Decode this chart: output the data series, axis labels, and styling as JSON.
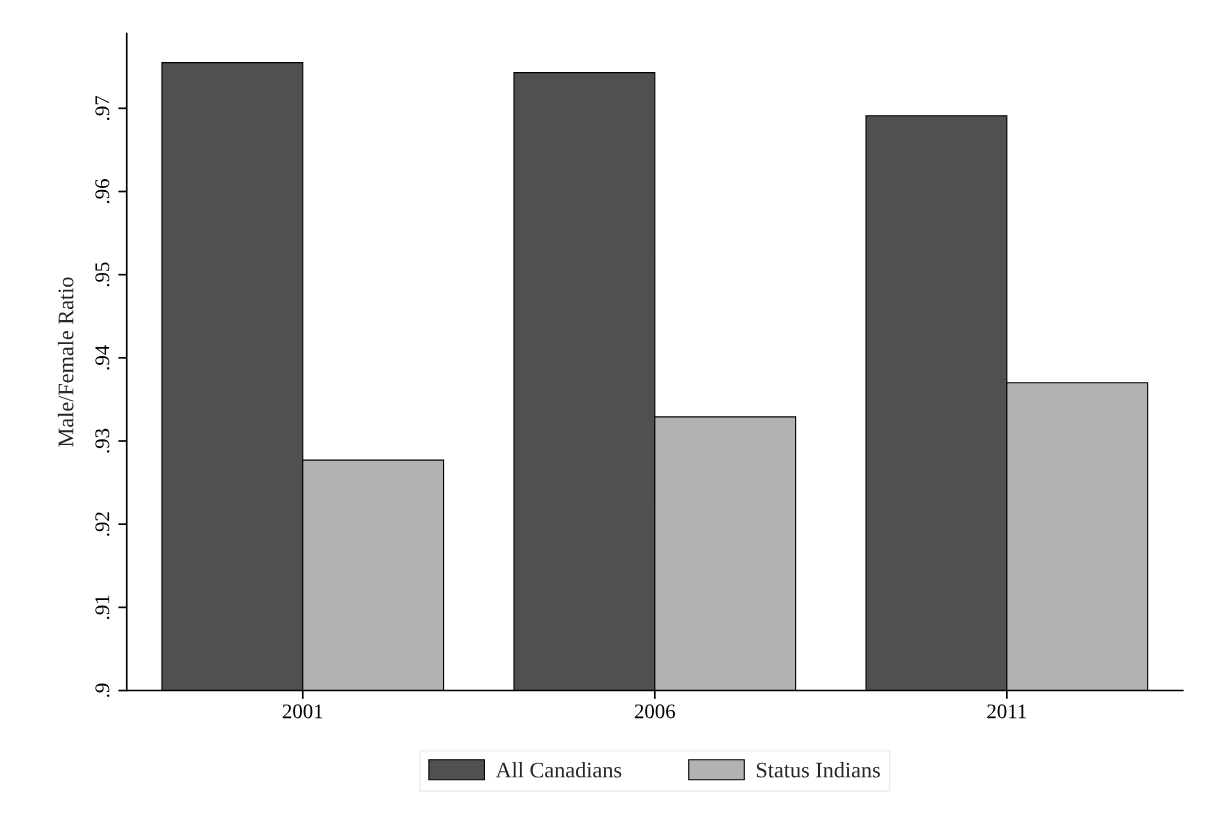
{
  "chart_data": {
    "type": "bar",
    "ylabel": "Male/Female Ratio",
    "categories": [
      "2001",
      "2006",
      "2011"
    ],
    "series": [
      {
        "name": "All Canadians",
        "color": "#505050",
        "values": [
          0.9755,
          0.9743,
          0.9691
        ]
      },
      {
        "name": "Status Indians",
        "color": "#b2b2b2",
        "values": [
          0.9277,
          0.9329,
          0.937
        ]
      }
    ],
    "ylim": [
      0.9,
      0.979
    ],
    "yticks": [
      {
        "value": 0.9,
        "label": ".9"
      },
      {
        "value": 0.91,
        "label": ".91"
      },
      {
        "value": 0.92,
        "label": ".92"
      },
      {
        "value": 0.93,
        "label": ".93"
      },
      {
        "value": 0.94,
        "label": ".94"
      },
      {
        "value": 0.95,
        "label": ".95"
      },
      {
        "value": 0.96,
        "label": ".96"
      },
      {
        "value": 0.97,
        "label": ".97"
      }
    ],
    "grid": false,
    "legend": "bottom"
  }
}
